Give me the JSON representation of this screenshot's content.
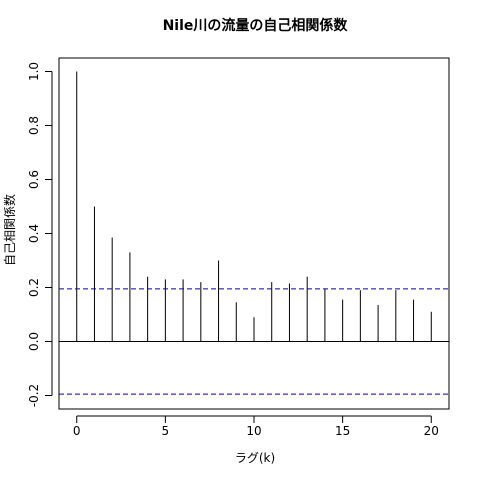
{
  "chart_data": {
    "type": "bar",
    "title": "Nile川の流量の自己相関係数",
    "xlabel": "ラグ(k)",
    "ylabel": "自己相関係数",
    "xlim": [
      -1,
      21
    ],
    "ylim": [
      -0.25,
      1.05
    ],
    "x_ticks": [
      0,
      5,
      10,
      15,
      20
    ],
    "y_ticks": [
      -0.2,
      0.0,
      0.2,
      0.4,
      0.6,
      0.8,
      1.0
    ],
    "y_tick_labels": [
      "-0.2",
      "0.0",
      "0.2",
      "0.4",
      "0.6",
      "0.8",
      "1.0"
    ],
    "x": [
      0,
      1,
      2,
      3,
      4,
      5,
      6,
      7,
      8,
      9,
      10,
      11,
      12,
      13,
      14,
      15,
      16,
      17,
      18,
      19,
      20
    ],
    "values": [
      1.0,
      0.5,
      0.385,
      0.33,
      0.24,
      0.23,
      0.23,
      0.22,
      0.3,
      0.145,
      0.09,
      0.22,
      0.215,
      0.24,
      0.195,
      0.155,
      0.19,
      0.135,
      0.19,
      0.155,
      0.11
    ],
    "confidence_bounds": [
      0.195,
      -0.195
    ],
    "colors": {
      "bars": "#000000",
      "bounds": "#0000cc",
      "axis": "#000000"
    },
    "grid": false
  }
}
